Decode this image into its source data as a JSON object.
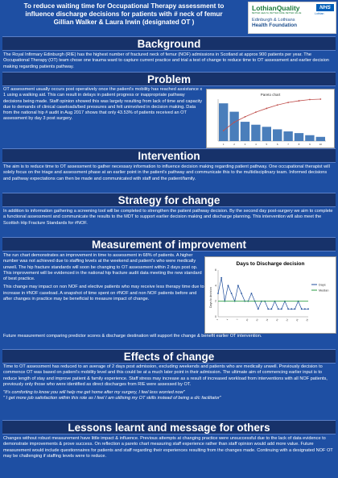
{
  "header": {
    "title_line1": "To reduce waiting time for Occupational Therapy assessment to",
    "title_line2": "influence discharge decisions for patients with # neck of femur",
    "title_line3": "Gillian Walker & Laura Irwin (designated OT )"
  },
  "logos": {
    "lothian_quality": "LothianQuality",
    "lothian_quality_sub": "BETTER HEALTH, BETTER CARE, BETTER VALUE",
    "nhs": "NHS",
    "nhs_sub": "Lothian",
    "hf_line1": "Edinburgh & Lothians",
    "hf_line2": "Health Foundation"
  },
  "background": {
    "heading": "Background",
    "text": "The Royal Infirmary Edinburgh (RIE) has the highest number of fractured neck of femur (NOF) admissions in Scotland at approx 900 patients per year. The Occupational Therapy (OT) team chose one trauma ward to capture current practice and trial a test of change to reduce time to OT assessment and earlier decision making regarding patients pathway."
  },
  "problem": {
    "heading": "Problem",
    "text": "OT assessment usually occurs post operatively once the patient's mobility has reached assistance x 1 using a walking aid. This can result in delays in patient progress or inappropriate pathway decisions being made. Staff opinion showed this was largely resulting from lack of time and capacity due to demands of clinical caseloads/bed pressures and felt uninvolved in decision making. Data from the national hip # audit in Aug 2017 shows that only 43.53% of patients received an OT assessment by day 3 post surgery.",
    "chart_title": "Pareto chart"
  },
  "intervention": {
    "heading": "Intervention",
    "text": "The aim is to reduce time to OT assessment to gather necessary information to influence decision making regarding patient pathway. One occupational therapist will solely focus on the triage and assessment phase at an earlier point in the patient's pathway and communicate this to the multidisciplinary team. Informed decisions and pathway expectations can then be made and communicated with staff and the patient/family."
  },
  "strategy": {
    "heading": "Strategy for change",
    "text": "In addition to information gathering a screening tool will be completed to strengthen the patient pathway decision. By the second day post-surgery we aim to complete a functional assessment and communicate the results to the MDT to support earlier decision making and discharge planning. This intervention will also meet the Scottish Hip Fracture Standards for #NOF."
  },
  "measurement": {
    "heading": "Measurement of improvement",
    "p1": "The run chart demonstrates an improvement in time to assessment in 68% of patients. A higher number was not achieved due to staffing levels at the weekend and patient's who were medically unwell. The hip fracture standards will soon be changing to OT assessment within 2 days post op. This improvement will be evidenced in the national hip fracture audit data meeting the new standard of best practice.",
    "p2": "This change may impact on non NOF and elective patients who may receive less therapy time due to increase in #NOF caseload. A snapshot of time spent on #NOF and non NOF patients before and after changes in practice may be beneficial to measure impact of change.",
    "p3": "Future measurement comparing predictor scores & discharge destination will support the change & benefit earlier OT intervention.",
    "chart_title": "Days to Discharge decision",
    "chart_ylabel": "Days to decision",
    "chart_legend": [
      "Days",
      "Median"
    ]
  },
  "effects": {
    "heading": "Effects of change",
    "text": "Time to OT assessment has reduced to an average of 2 days post admission, excluding weekends and patients who are medically unwell. Previously decision to commence OT was based on patient's mobility level and this could be at a much later point in their admission. The ultimate aim of commencing earlier input is to reduce length of stay and improve patient & family experience. Staff stress may increase as a result of increased workload from interventions with all NOF patients, previously only those who were identified as direct discharges from RIE were assessed by OT.",
    "quote1": "\"It's comforting to know you will help me get home after my surgery, I feel less worried now\"",
    "quote2": "\" I get more job satisfaction within this role as I feel I am utilising my OT skills instead of being a d/c facilitator\""
  },
  "lessons": {
    "heading": "Lessons learnt and message for others",
    "text": "Changes without robust measurement have little impact & influence. Previous attempts at changing practice were unsuccessful due to the lack of data evidence to demonstrate improvements & prove success. On reflection a pareto chart measuring staff experience rather than staff opinion would add more value. Future measurement would include questionnaires for patients and staff regarding their experiences resulting from the changes made. Continuing with a designated NOF OT may be challenging if staffing levels were to reduce."
  },
  "chart_data": [
    {
      "type": "bar",
      "title": "Pareto chart",
      "categories": [
        "1",
        "2",
        "3",
        "4",
        "5",
        "6",
        "7",
        "8",
        "9",
        "10"
      ],
      "values": [
        9,
        7,
        4.6,
        3.9,
        3.4,
        2.8,
        2.3,
        1.9,
        1.4,
        1
      ],
      "cumulative_percent": [
        25,
        45,
        58,
        69,
        78,
        86,
        92,
        96,
        99,
        100
      ],
      "ylim": [
        0,
        10
      ]
    },
    {
      "type": "line",
      "title": "Days to Discharge decision",
      "ylabel": "Days to decision",
      "x": [
        "1",
        "2",
        "3",
        "4",
        "5",
        "6",
        "7",
        "8",
        "9",
        "10",
        "11",
        "12",
        "13",
        "14",
        "15",
        "16",
        "17",
        "18",
        "19",
        "20",
        "21",
        "22",
        "23",
        "24",
        "25",
        "26",
        "27",
        "28"
      ],
      "series": [
        {
          "name": "Days",
          "values": [
            3,
            5,
            2,
            4,
            3,
            2,
            4,
            3,
            2,
            2,
            3,
            2,
            1,
            2,
            2,
            1,
            1,
            2,
            1,
            1,
            2,
            1,
            1,
            1,
            2,
            1,
            1,
            1
          ]
        },
        {
          "name": "Median",
          "values": [
            2,
            2,
            2,
            2,
            2,
            2,
            2,
            2,
            2,
            2,
            2,
            2,
            2,
            2,
            2,
            2,
            2,
            2,
            2,
            2,
            2,
            2,
            2,
            2,
            2,
            2,
            2,
            2
          ]
        }
      ],
      "ylim": [
        0,
        6
      ]
    }
  ]
}
